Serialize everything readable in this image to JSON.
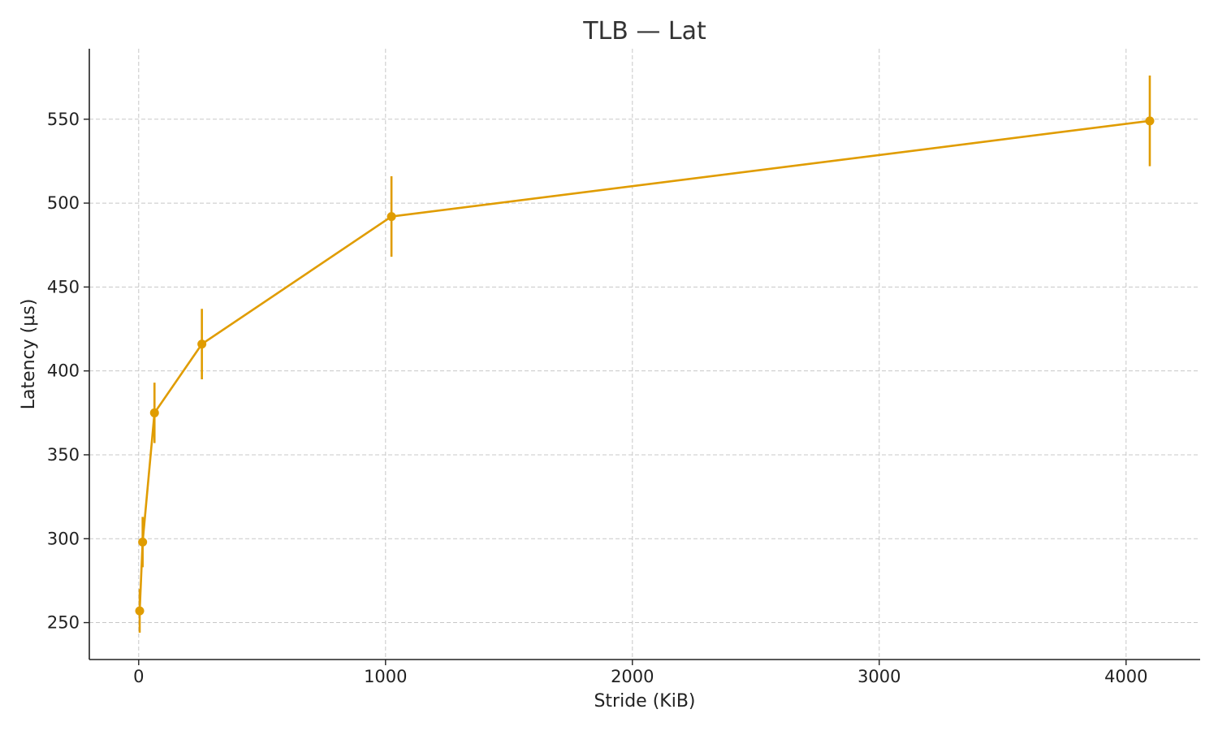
{
  "chart_data": {
    "type": "line",
    "title": "TLB — Lat",
    "xlabel": "Stride (KiB)",
    "ylabel": "Latency (µs)",
    "xlim": [
      -200,
      4300
    ],
    "ylim": [
      228,
      592
    ],
    "xticks": [
      0,
      1000,
      2000,
      3000,
      4000
    ],
    "yticks": [
      250,
      300,
      350,
      400,
      450,
      500,
      550
    ],
    "grid": true,
    "color": "#e09c00",
    "series": [
      {
        "x": [
          4,
          16,
          64,
          256,
          1024,
          4096
        ],
        "y": [
          257,
          298,
          375,
          416,
          492,
          549
        ],
        "err": [
          13,
          15,
          18,
          21,
          24,
          27
        ]
      }
    ]
  }
}
